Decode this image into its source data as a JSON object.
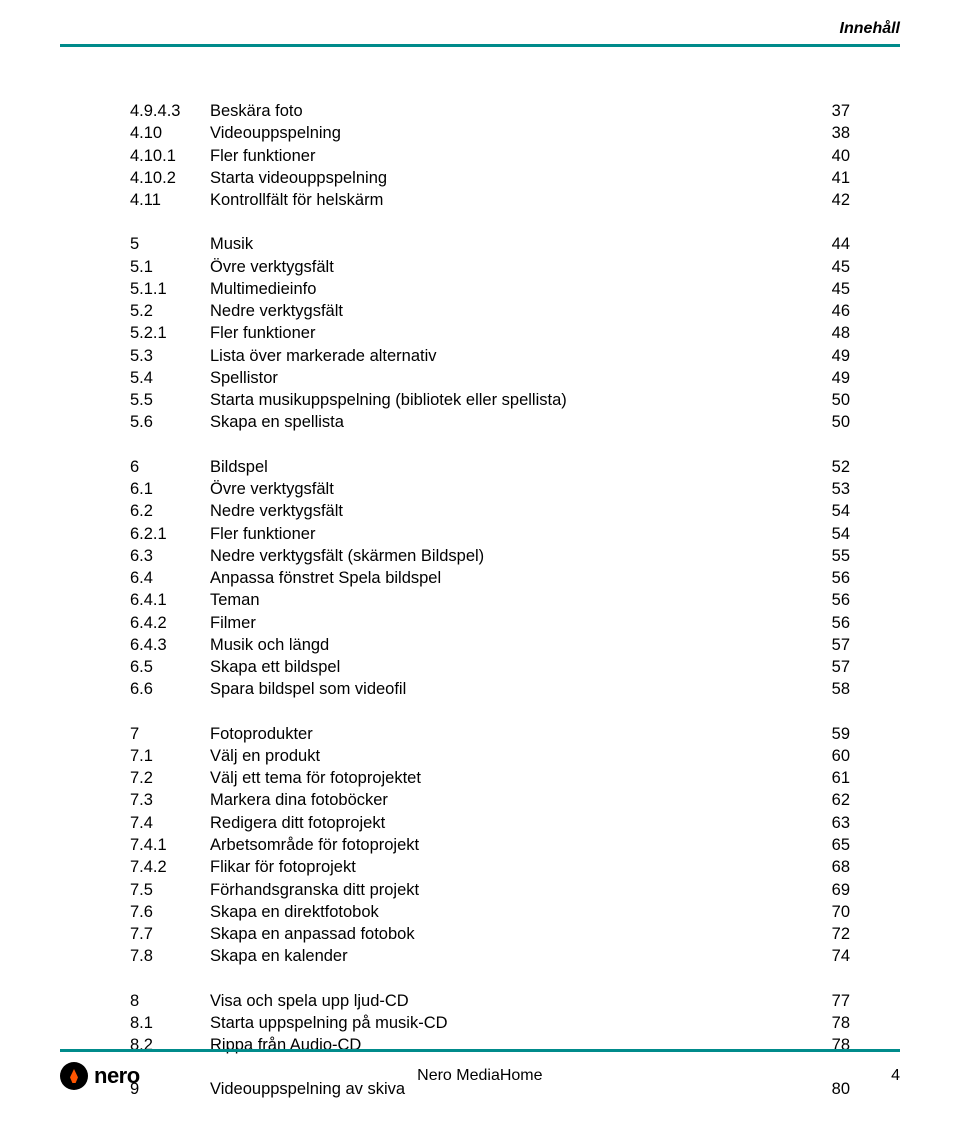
{
  "header": {
    "label": "Innehåll",
    "rule_color": "#008b8b"
  },
  "colors": {
    "text": "#000000",
    "background": "#ffffff",
    "rule": "#008b8b",
    "flame": "#ff5500"
  },
  "typography": {
    "body_fontsize_pt": 12,
    "header_fontsize_pt": 12,
    "font_family": "Arial"
  },
  "toc": [
    [
      {
        "num": "4.9.4.3",
        "title": "Beskära foto",
        "page": "37"
      },
      {
        "num": "4.10",
        "title": "Videouppspelning",
        "page": "38"
      },
      {
        "num": "4.10.1",
        "title": "Fler funktioner",
        "page": "40"
      },
      {
        "num": "4.10.2",
        "title": "Starta videouppspelning",
        "page": "41"
      },
      {
        "num": "4.11",
        "title": "Kontrollfält för helskärm",
        "page": "42"
      }
    ],
    [
      {
        "num": "5",
        "title": "Musik",
        "page": "44"
      },
      {
        "num": "5.1",
        "title": "Övre verktygsfält",
        "page": "45"
      },
      {
        "num": "5.1.1",
        "title": "Multimedieinfo",
        "page": "45"
      },
      {
        "num": "5.2",
        "title": "Nedre verktygsfält",
        "page": "46"
      },
      {
        "num": "5.2.1",
        "title": "Fler funktioner",
        "page": "48"
      },
      {
        "num": "5.3",
        "title": "Lista över markerade alternativ",
        "page": "49"
      },
      {
        "num": "5.4",
        "title": "Spellistor",
        "page": "49"
      },
      {
        "num": "5.5",
        "title": "Starta musikuppspelning (bibliotek eller spellista)",
        "page": "50"
      },
      {
        "num": "5.6",
        "title": "Skapa en spellista",
        "page": "50"
      }
    ],
    [
      {
        "num": "6",
        "title": "Bildspel",
        "page": "52"
      },
      {
        "num": "6.1",
        "title": "Övre verktygsfält",
        "page": "53"
      },
      {
        "num": "6.2",
        "title": "Nedre verktygsfält",
        "page": "54"
      },
      {
        "num": "6.2.1",
        "title": "Fler funktioner",
        "page": "54"
      },
      {
        "num": "6.3",
        "title": "Nedre verktygsfält (skärmen Bildspel)",
        "page": "55"
      },
      {
        "num": "6.4",
        "title": "Anpassa fönstret Spela bildspel",
        "page": "56"
      },
      {
        "num": "6.4.1",
        "title": "Teman",
        "page": "56"
      },
      {
        "num": "6.4.2",
        "title": "Filmer",
        "page": "56"
      },
      {
        "num": "6.4.3",
        "title": "Musik och längd",
        "page": "57"
      },
      {
        "num": "6.5",
        "title": "Skapa ett bildspel",
        "page": "57"
      },
      {
        "num": "6.6",
        "title": "Spara bildspel som videofil",
        "page": "58"
      }
    ],
    [
      {
        "num": "7",
        "title": "Fotoprodukter",
        "page": "59"
      },
      {
        "num": "7.1",
        "title": "Välj en produkt",
        "page": "60"
      },
      {
        "num": "7.2",
        "title": "Välj ett tema för fotoprojektet",
        "page": "61"
      },
      {
        "num": "7.3",
        "title": "Markera dina fotoböcker",
        "page": "62"
      },
      {
        "num": "7.4",
        "title": "Redigera ditt fotoprojekt",
        "page": "63"
      },
      {
        "num": "7.4.1",
        "title": "Arbetsområde för fotoprojekt",
        "page": "65"
      },
      {
        "num": "7.4.2",
        "title": "Flikar för fotoprojekt",
        "page": "68"
      },
      {
        "num": "7.5",
        "title": "Förhandsgranska ditt projekt",
        "page": "69"
      },
      {
        "num": "7.6",
        "title": "Skapa en direktfotobok",
        "page": "70"
      },
      {
        "num": "7.7",
        "title": "Skapa en anpassad fotobok",
        "page": "72"
      },
      {
        "num": "7.8",
        "title": "Skapa en kalender",
        "page": "74"
      }
    ],
    [
      {
        "num": "8",
        "title": "Visa och spela upp ljud-CD",
        "page": "77"
      },
      {
        "num": "8.1",
        "title": "Starta uppspelning på musik-CD",
        "page": "78"
      },
      {
        "num": "8.2",
        "title": "Rippa från Audio-CD",
        "page": "78"
      }
    ],
    [
      {
        "num": "9",
        "title": "Videouppspelning av skiva",
        "page": "80"
      }
    ]
  ],
  "footer": {
    "logo_text": "nero",
    "center": "Nero MediaHome",
    "page_number": "4"
  }
}
